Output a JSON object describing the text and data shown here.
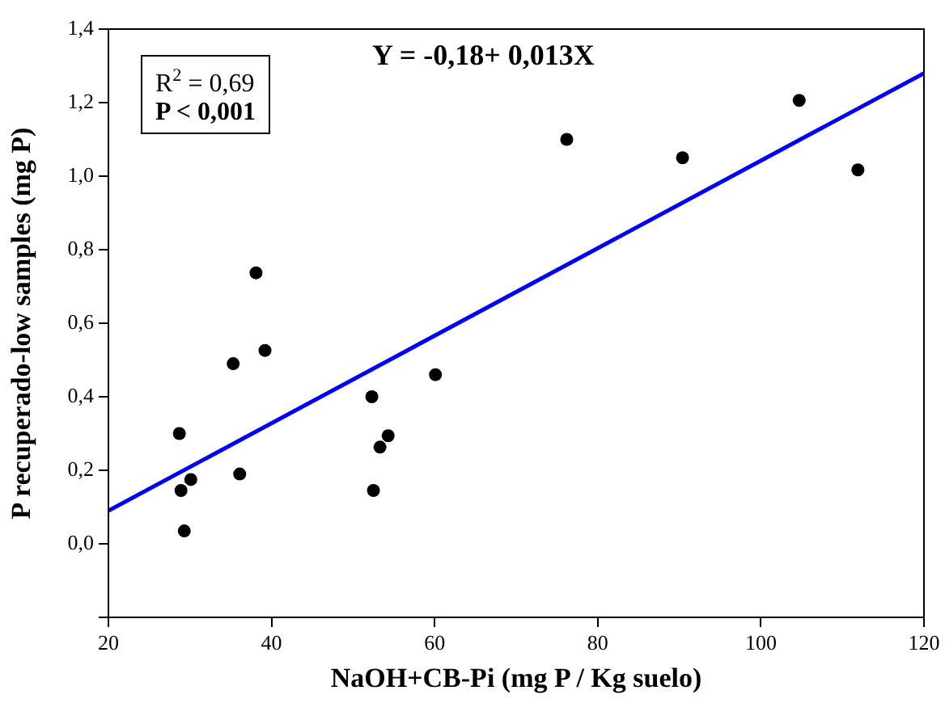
{
  "chart_data": {
    "type": "scatter",
    "xlabel": "NaOH+CB-Pi (mg P / Kg suelo)",
    "ylabel": "P recuperado-low samples (mg P)",
    "xlim": [
      20,
      120
    ],
    "xticks": [
      20,
      40,
      60,
      80,
      100,
      120
    ],
    "ylim": [
      -0.2,
      1.4
    ],
    "yticks": [
      {
        "value": -0.2,
        "label": null
      },
      {
        "value": 0,
        "label": "0,0"
      },
      {
        "value": 0.2,
        "label": "0,2"
      },
      {
        "value": 0.4,
        "label": "0,4"
      },
      {
        "value": 0.6,
        "label": "0,6"
      },
      {
        "value": 0.8,
        "label": "0,8"
      },
      {
        "value": 1,
        "label": "1,0"
      },
      {
        "value": 1.2,
        "label": "1,2"
      },
      {
        "value": 1.4,
        "label": "1,4"
      }
    ],
    "grid": false,
    "legend": false,
    "marker": "circle",
    "series": [
      {
        "color": "#000000",
        "x": [
          28.7,
          28.9,
          30.1,
          29.3,
          36.1,
          35.3,
          38.1,
          39.2,
          52.3,
          52.5,
          53.3,
          54.3,
          60.1,
          76.2,
          90.4,
          104.7,
          111.9
        ],
        "values": [
          0.3,
          0.145,
          0.175,
          0.035,
          0.19,
          0.49,
          0.737,
          0.526,
          0.4,
          0.145,
          0.263,
          0.294,
          0.46,
          1.1,
          1.05,
          1.206,
          1.017
        ]
      },
      {
        "type": "line",
        "color": "#0000ff",
        "x": [
          20,
          120
        ],
        "values": [
          0.09,
          1.28
        ],
        "marker": "none",
        "line_style": "solid"
      }
    ],
    "annotations": [
      "R$^{2}$ = 0,69",
      "P < 0,001",
      "Y = -0,18+ 0,013X"
    ]
  }
}
